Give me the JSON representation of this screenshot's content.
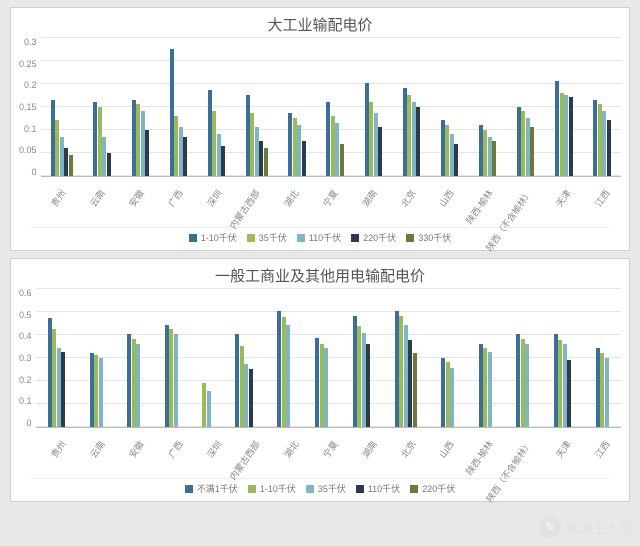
{
  "chart1": {
    "title": "大工业输配电价",
    "ylim": [
      0,
      0.3
    ],
    "ytick_step": 0.05,
    "yticks": [
      "0.3",
      "0.25",
      "0.2",
      "0.15",
      "0.1",
      "0.05",
      "0"
    ],
    "grid_color": "#e4e4e4",
    "background": "#ffffff",
    "categories": [
      "贵州",
      "云南",
      "安徽",
      "广西",
      "深圳",
      "内蒙古西部",
      "湖北",
      "宁夏",
      "湖南",
      "北京",
      "山西",
      "陕西-榆林",
      "陕西（不含榆林）",
      "天津",
      "江西"
    ],
    "series": [
      {
        "label": "1-10千伏",
        "color": "#3a6f97"
      },
      {
        "label": "35千伏",
        "color": "#9bbb59"
      },
      {
        "label": "110千伏",
        "color": "#7eb6c4"
      },
      {
        "label": "220千伏",
        "color": "#2b3a4c"
      },
      {
        "label": "330千伏",
        "color": "#6b7a3a"
      }
    ],
    "data": [
      [
        0.165,
        0.12,
        0.085,
        0.06,
        0.045
      ],
      [
        0.16,
        0.15,
        0.085,
        0.05,
        null
      ],
      [
        0.165,
        0.155,
        0.14,
        0.1,
        null
      ],
      [
        0.275,
        0.13,
        0.105,
        0.085,
        null
      ],
      [
        0.185,
        0.14,
        0.09,
        0.065,
        null
      ],
      [
        0.175,
        0.135,
        0.105,
        0.075,
        0.06
      ],
      [
        0.135,
        0.125,
        0.11,
        0.075,
        null
      ],
      [
        0.16,
        0.13,
        0.115,
        null,
        0.07
      ],
      [
        0.2,
        0.16,
        0.135,
        0.105,
        null
      ],
      [
        0.19,
        0.175,
        0.16,
        0.15,
        null
      ],
      [
        0.12,
        0.11,
        0.09,
        0.07,
        null
      ],
      [
        0.11,
        0.1,
        0.085,
        null,
        0.075
      ],
      [
        0.15,
        0.14,
        0.125,
        null,
        0.105
      ],
      [
        0.205,
        0.18,
        0.175,
        0.17,
        null
      ],
      [
        0.165,
        0.155,
        0.14,
        0.12,
        null
      ]
    ]
  },
  "chart2": {
    "title": "一般工商业及其他用电输配电价",
    "ylim": [
      0,
      0.6
    ],
    "ytick_step": 0.1,
    "yticks": [
      "0.6",
      "0.5",
      "0.4",
      "0.3",
      "0.2",
      "0.1",
      "0"
    ],
    "grid_color": "#e4e4e4",
    "background": "#ffffff",
    "categories": [
      "贵州",
      "云南",
      "安徽",
      "广西",
      "深圳",
      "内蒙古西部",
      "湖北",
      "宁夏",
      "湖南",
      "北京",
      "山西",
      "陕西-榆林",
      "陕西（不含榆林）",
      "天津",
      "江西"
    ],
    "series": [
      {
        "label": "不满1千伏",
        "color": "#3a6f97"
      },
      {
        "label": "1-10千伏",
        "color": "#9bbb59"
      },
      {
        "label": "35千伏",
        "color": "#7eb6c4"
      },
      {
        "label": "110千伏",
        "color": "#2b3a4c"
      },
      {
        "label": "220千伏",
        "color": "#6b7a3a"
      }
    ],
    "data": [
      [
        0.47,
        0.425,
        0.34,
        0.325,
        null
      ],
      [
        0.32,
        0.31,
        0.3,
        null,
        null
      ],
      [
        0.4,
        0.38,
        0.36,
        null,
        null
      ],
      [
        0.44,
        0.425,
        0.4,
        null,
        null
      ],
      [
        null,
        0.19,
        0.155,
        null,
        null
      ],
      [
        0.4,
        0.35,
        0.27,
        0.25,
        null
      ],
      [
        0.5,
        0.475,
        0.44,
        null,
        null
      ],
      [
        0.385,
        0.36,
        0.34,
        null,
        null
      ],
      [
        0.48,
        0.435,
        0.405,
        0.36,
        null
      ],
      [
        0.5,
        0.48,
        0.44,
        0.375,
        0.32
      ],
      [
        0.3,
        0.28,
        0.255,
        null,
        null
      ],
      [
        0.36,
        0.34,
        0.325,
        null,
        null
      ],
      [
        0.4,
        0.38,
        0.36,
        null,
        null
      ],
      [
        0.4,
        0.375,
        0.36,
        0.29,
        null
      ],
      [
        0.34,
        0.32,
        0.3,
        null,
        null
      ]
    ]
  },
  "watermark": {
    "text": "能源生态圈",
    "icon": "✎"
  }
}
